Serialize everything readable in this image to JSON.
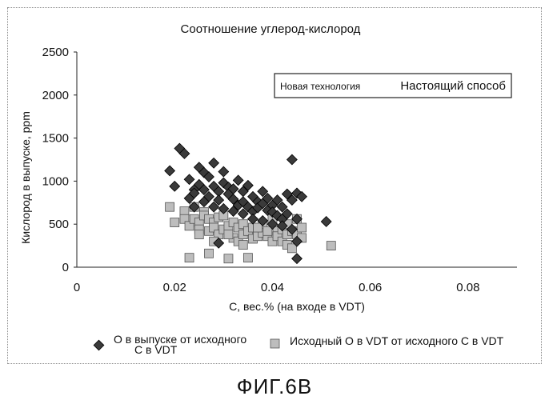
{
  "chart_data": {
    "type": "scatter",
    "title": "Соотношение углерод-кислород",
    "xlabel": "C, вес.% (на входе в VDT)",
    "ylabel": "Кислород в выпуске, ppm",
    "xlim": [
      0,
      0.09
    ],
    "ylim": [
      0,
      2500
    ],
    "xticks": [
      0,
      0.02,
      0.04,
      0.06,
      0.08
    ],
    "xtick_labels": [
      "0",
      "0.02",
      "0.04",
      "0.06",
      "0.08"
    ],
    "yticks": [
      0,
      500,
      1000,
      1500,
      2000,
      2500
    ],
    "ytick_labels": [
      "0",
      "500",
      "1000",
      "1500",
      "2000",
      "2500"
    ],
    "grid": false,
    "legend_position": "bottom",
    "annotation_box": {
      "left_text": "Новая технология",
      "right_text": "Настоящий способ"
    },
    "series": [
      {
        "name": "О в выпуске от исходного С в VDT",
        "marker": "diamond",
        "color": "#3a3a3a",
        "points": [
          [
            0.019,
            1120
          ],
          [
            0.02,
            940
          ],
          [
            0.021,
            1380
          ],
          [
            0.022,
            1320
          ],
          [
            0.023,
            1020
          ],
          [
            0.023,
            800
          ],
          [
            0.024,
            900
          ],
          [
            0.024,
            860
          ],
          [
            0.025,
            960
          ],
          [
            0.025,
            1160
          ],
          [
            0.026,
            1100
          ],
          [
            0.026,
            900
          ],
          [
            0.027,
            1050
          ],
          [
            0.027,
            820
          ],
          [
            0.028,
            1210
          ],
          [
            0.028,
            940
          ],
          [
            0.029,
            880
          ],
          [
            0.029,
            780
          ],
          [
            0.03,
            1110
          ],
          [
            0.03,
            980
          ],
          [
            0.031,
            930
          ],
          [
            0.031,
            850
          ],
          [
            0.032,
            910
          ],
          [
            0.032,
            790
          ],
          [
            0.033,
            1010
          ],
          [
            0.033,
            720
          ],
          [
            0.034,
            880
          ],
          [
            0.034,
            760
          ],
          [
            0.035,
            950
          ],
          [
            0.035,
            700
          ],
          [
            0.036,
            820
          ],
          [
            0.036,
            650
          ],
          [
            0.037,
            760
          ],
          [
            0.037,
            690
          ],
          [
            0.038,
            880
          ],
          [
            0.038,
            740
          ],
          [
            0.039,
            800
          ],
          [
            0.039,
            660
          ],
          [
            0.04,
            720
          ],
          [
            0.04,
            640
          ],
          [
            0.041,
            780
          ],
          [
            0.041,
            600
          ],
          [
            0.042,
            700
          ],
          [
            0.042,
            560
          ],
          [
            0.043,
            850
          ],
          [
            0.043,
            620
          ],
          [
            0.044,
            1250
          ],
          [
            0.044,
            780
          ],
          [
            0.045,
            860
          ],
          [
            0.045,
            560
          ],
          [
            0.046,
            820
          ],
          [
            0.045,
            300
          ],
          [
            0.045,
            100
          ],
          [
            0.051,
            530
          ],
          [
            0.024,
            700
          ],
          [
            0.026,
            760
          ],
          [
            0.028,
            700
          ],
          [
            0.03,
            680
          ],
          [
            0.032,
            650
          ],
          [
            0.034,
            620
          ],
          [
            0.029,
            280
          ],
          [
            0.036,
            560
          ],
          [
            0.038,
            540
          ],
          [
            0.04,
            500
          ],
          [
            0.042,
            480
          ],
          [
            0.044,
            440
          ]
        ]
      },
      {
        "name": "Исходный О в VDT от исходного С в VDT",
        "marker": "square",
        "color": "#bdbdbd",
        "points": [
          [
            0.019,
            700
          ],
          [
            0.02,
            520
          ],
          [
            0.022,
            650
          ],
          [
            0.022,
            560
          ],
          [
            0.023,
            480
          ],
          [
            0.023,
            110
          ],
          [
            0.024,
            700
          ],
          [
            0.024,
            560
          ],
          [
            0.025,
            520
          ],
          [
            0.025,
            440
          ],
          [
            0.026,
            640
          ],
          [
            0.026,
            600
          ],
          [
            0.027,
            560
          ],
          [
            0.027,
            420
          ],
          [
            0.027,
            160
          ],
          [
            0.028,
            520
          ],
          [
            0.028,
            460
          ],
          [
            0.029,
            580
          ],
          [
            0.029,
            380
          ],
          [
            0.03,
            600
          ],
          [
            0.03,
            440
          ],
          [
            0.031,
            480
          ],
          [
            0.031,
            100
          ],
          [
            0.032,
            520
          ],
          [
            0.032,
            340
          ],
          [
            0.033,
            460
          ],
          [
            0.033,
            300
          ],
          [
            0.034,
            500
          ],
          [
            0.034,
            380
          ],
          [
            0.035,
            420
          ],
          [
            0.035,
            110
          ],
          [
            0.036,
            460
          ],
          [
            0.036,
            330
          ],
          [
            0.037,
            440
          ],
          [
            0.037,
            360
          ],
          [
            0.038,
            480
          ],
          [
            0.038,
            400
          ],
          [
            0.039,
            360
          ],
          [
            0.039,
            420
          ],
          [
            0.04,
            300
          ],
          [
            0.041,
            420
          ],
          [
            0.041,
            360
          ],
          [
            0.042,
            440
          ],
          [
            0.042,
            300
          ],
          [
            0.043,
            380
          ],
          [
            0.043,
            260
          ],
          [
            0.044,
            420
          ],
          [
            0.044,
            220
          ],
          [
            0.045,
            560
          ],
          [
            0.045,
            380
          ],
          [
            0.046,
            340
          ],
          [
            0.052,
            250
          ],
          [
            0.025,
            380
          ],
          [
            0.028,
            300
          ],
          [
            0.031,
            380
          ],
          [
            0.034,
            260
          ],
          [
            0.037,
            460
          ],
          [
            0.04,
            560
          ],
          [
            0.043,
            500
          ],
          [
            0.046,
            460
          ]
        ]
      }
    ],
    "caption": "ФИГ.6В"
  }
}
